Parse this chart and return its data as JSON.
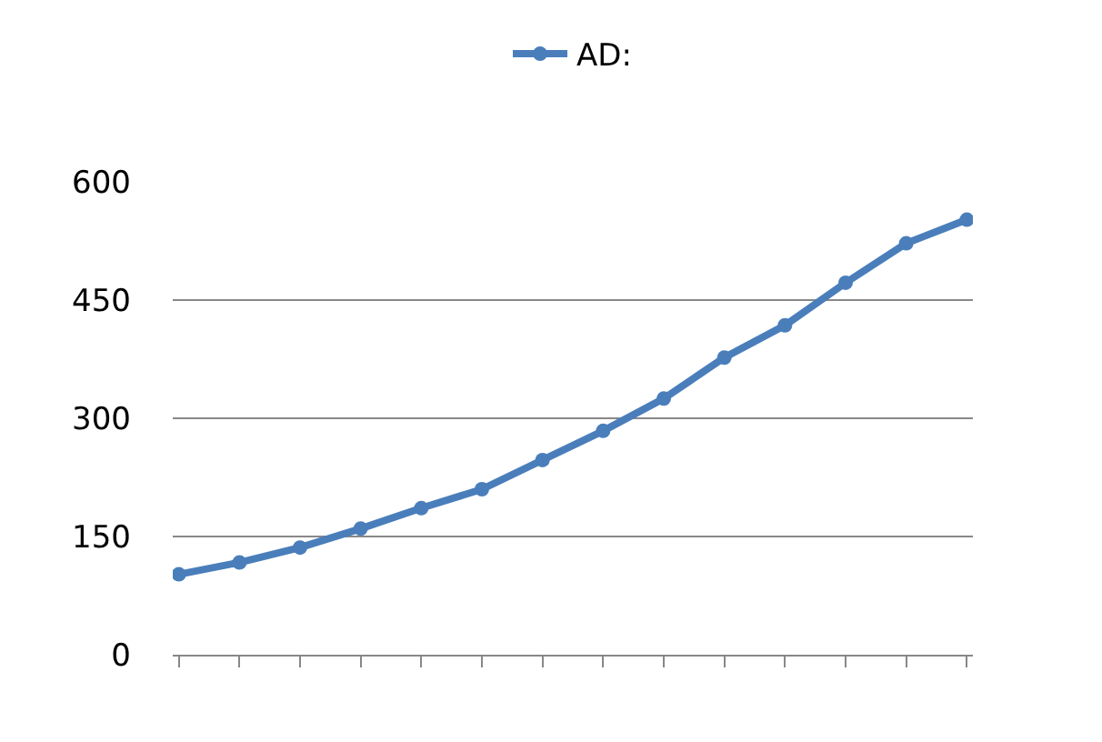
{
  "chart_data": {
    "type": "line",
    "categories": [
      null,
      null,
      null,
      null,
      null,
      null,
      null,
      null,
      null,
      null,
      null,
      null,
      null,
      null
    ],
    "series": [
      {
        "name": "AD:",
        "color": "#4a7ebb",
        "values": [
          102,
          117,
          136,
          160,
          186,
          210,
          247,
          284,
          325,
          377,
          418,
          472,
          522,
          552
        ]
      }
    ],
    "ylim": [
      0,
      600
    ],
    "yticks": [
      0,
      150,
      300,
      450,
      600
    ],
    "grid": "y",
    "legend": "top",
    "marker": "circle",
    "line_style": "solid"
  }
}
